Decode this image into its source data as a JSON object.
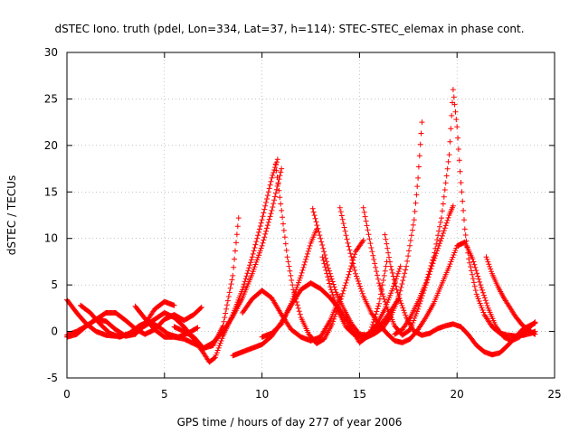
{
  "chart_data": {
    "type": "scatter",
    "title": "dSTEC Iono. truth (pdel, Lon=334, Lat=37, h=114): STEC-STEC_elemax in phase cont.",
    "xlabel": "GPS time / hours of day 277 of year 2006",
    "ylabel": "dSTEC  / TECUs",
    "xlim": [
      0,
      25
    ],
    "ylim": [
      -5,
      30
    ],
    "xticks": [
      0,
      5,
      10,
      15,
      20,
      25
    ],
    "yticks": [
      -5,
      0,
      5,
      10,
      15,
      20,
      25,
      30
    ],
    "grid": true,
    "marker": "+",
    "color": "#ff0000",
    "series": [
      {
        "x": [
          0.0,
          0.5,
          1.0,
          1.5,
          2.0,
          2.5,
          3.0,
          3.5,
          4.0,
          4.5,
          5.0,
          5.5,
          6.0,
          6.5,
          7.0,
          7.3,
          7.6,
          8.0,
          8.5,
          9.0,
          9.5,
          10.0,
          10.5,
          10.8
        ],
        "values": [
          3.4,
          2.0,
          0.8,
          0.0,
          -0.4,
          -0.5,
          -0.4,
          0.0,
          0.6,
          1.3,
          2.0,
          1.5,
          0.5,
          -0.8,
          -2.3,
          -3.3,
          -2.8,
          -0.5,
          1.8,
          4.5,
          8.0,
          12.0,
          16.5,
          18.5
        ]
      },
      {
        "x": [
          0.0,
          0.5,
          1.0,
          1.5,
          2.0,
          2.5,
          3.0,
          3.5,
          4.0,
          4.5,
          5.0,
          5.5,
          6.0,
          6.5,
          6.9
        ],
        "values": [
          -0.4,
          0.0,
          0.6,
          1.3,
          2.0,
          2.0,
          1.2,
          0.3,
          -0.3,
          0.2,
          1.3,
          1.8,
          1.2,
          1.8,
          2.6
        ]
      },
      {
        "x": [
          0.0,
          0.5,
          1.0,
          1.5,
          2.0,
          2.5,
          3.0,
          3.5,
          4.0,
          4.5,
          5.0,
          5.5
        ],
        "values": [
          -0.6,
          -0.3,
          0.6,
          1.3,
          1.1,
          0.2,
          -0.5,
          -0.3,
          0.8,
          2.4,
          3.2,
          2.8
        ]
      },
      {
        "x": [
          0.7,
          1.2,
          1.7,
          2.2,
          2.7,
          3.2,
          3.7,
          4.2,
          4.7,
          5.2,
          5.7,
          6.2,
          6.7
        ],
        "values": [
          2.8,
          2.0,
          0.8,
          -0.2,
          -0.6,
          -0.2,
          0.6,
          1.1,
          0.5,
          -0.3,
          -0.6,
          -0.2,
          0.4
        ]
      },
      {
        "x": [
          3.5,
          4.0,
          4.5,
          5.0,
          5.5,
          6.0,
          6.5,
          7.0,
          7.5,
          8.0,
          8.5,
          8.8
        ],
        "values": [
          2.7,
          1.4,
          0.2,
          -0.6,
          -0.6,
          -0.8,
          -1.3,
          -1.8,
          -1.5,
          0.6,
          6.0,
          12.2
        ]
      },
      {
        "x": [
          5.5,
          6.0,
          6.5,
          7.0,
          7.5,
          8.0,
          8.5,
          9.0,
          9.5,
          10.0,
          10.5,
          11.0
        ],
        "values": [
          0.5,
          0.0,
          -0.6,
          -1.8,
          -1.2,
          0.0,
          1.6,
          3.6,
          6.2,
          9.2,
          13.0,
          17.5
        ]
      },
      {
        "x": [
          8.5,
          9.0,
          9.5,
          10.0,
          10.5,
          11.0,
          11.5,
          12.0,
          12.5,
          13.0,
          13.5,
          14.0,
          14.5,
          15.0,
          15.5,
          16.0,
          16.4
        ],
        "values": [
          -2.6,
          -2.2,
          -1.8,
          -1.4,
          -0.5,
          1.0,
          2.8,
          4.5,
          5.2,
          4.6,
          3.6,
          2.3,
          0.6,
          -1.2,
          -0.4,
          3.0,
          7.5
        ]
      },
      {
        "x": [
          9.0,
          9.5,
          10.0,
          10.5,
          11.0,
          11.5,
          12.0,
          12.5,
          13.0,
          13.5,
          14.0
        ],
        "values": [
          2.0,
          3.5,
          4.4,
          3.6,
          1.8,
          0.2,
          -0.6,
          -1.0,
          -0.6,
          1.2,
          3.8
        ]
      },
      {
        "x": [
          10.7,
          11.0,
          11.3,
          11.6,
          12.0,
          12.4,
          12.8,
          13.2,
          13.6,
          14.0,
          14.4,
          14.8,
          15.2
        ],
        "values": [
          18.0,
          13.0,
          8.0,
          4.5,
          1.5,
          -0.3,
          -1.3,
          -0.8,
          0.8,
          3.2,
          5.8,
          8.6,
          9.8
        ]
      },
      {
        "x": [
          10.0,
          10.5,
          11.0,
          11.5,
          12.0,
          12.5,
          12.8
        ],
        "values": [
          -0.6,
          -0.2,
          0.8,
          3.0,
          6.0,
          9.5,
          11.0
        ]
      },
      {
        "x": [
          12.6,
          13.0,
          13.4,
          13.8,
          14.2,
          14.6,
          15.0,
          15.4,
          15.8,
          16.2,
          16.6,
          17.0
        ],
        "values": [
          13.2,
          10.0,
          6.8,
          4.2,
          2.4,
          0.8,
          -0.3,
          -0.4,
          0.2,
          1.0,
          2.2,
          3.5
        ]
      },
      {
        "x": [
          13.1,
          13.5,
          13.9,
          14.3,
          14.7,
          15.1,
          15.5,
          15.9,
          16.3,
          16.7,
          17.1
        ],
        "values": [
          8.0,
          4.8,
          2.2,
          0.5,
          -0.3,
          -0.6,
          -0.2,
          0.8,
          2.4,
          4.6,
          7.0
        ]
      },
      {
        "x": [
          14.0,
          14.4,
          14.8,
          15.2,
          15.6,
          16.0,
          16.4,
          16.8,
          17.2,
          17.6,
          18.0,
          18.4,
          18.8,
          19.2,
          19.6,
          20.0,
          20.4,
          20.8,
          21.2,
          21.6,
          22.0,
          22.4,
          22.8,
          23.2,
          23.6,
          24.0
        ],
        "values": [
          13.3,
          9.5,
          6.2,
          3.8,
          2.0,
          0.8,
          -0.2,
          -1.0,
          -1.2,
          -0.8,
          0.2,
          1.5,
          3.0,
          5.0,
          7.0,
          9.2,
          9.6,
          7.8,
          5.0,
          2.5,
          0.5,
          -0.6,
          -1.0,
          -0.6,
          0.2,
          1.0
        ]
      },
      {
        "x": [
          15.2,
          15.6,
          16.0,
          16.4,
          16.8,
          17.2,
          17.6,
          18.0,
          18.4,
          18.8,
          19.2,
          19.6,
          19.8
        ],
        "values": [
          13.3,
          9.0,
          5.2,
          2.6,
          0.6,
          -0.4,
          0.2,
          2.4,
          5.0,
          7.6,
          10.0,
          12.5,
          13.5
        ]
      },
      {
        "x": [
          16.3,
          16.6,
          17.0,
          17.4,
          17.8,
          18.2,
          18.6,
          19.0,
          19.4,
          19.8,
          20.2,
          20.6,
          21.0,
          21.4,
          21.8,
          22.2,
          22.6,
          23.0,
          23.4,
          23.8,
          24.0
        ],
        "values": [
          10.4,
          7.0,
          3.8,
          1.5,
          0.0,
          -0.4,
          -0.2,
          0.3,
          0.6,
          0.8,
          0.5,
          -0.4,
          -1.5,
          -2.2,
          -2.5,
          -2.3,
          -1.5,
          -0.6,
          0.3,
          0.7,
          0.9
        ]
      },
      {
        "x": [
          15.0,
          15.4,
          15.8,
          16.2,
          16.6,
          17.0,
          17.4,
          17.8,
          18.0,
          18.2
        ],
        "values": [
          -0.5,
          -0.6,
          -0.2,
          0.4,
          1.6,
          3.6,
          7.0,
          12.0,
          16.5,
          22.5
        ]
      },
      {
        "x": [
          16.8,
          17.2,
          17.6,
          18.0,
          18.4,
          18.8,
          19.2,
          19.6,
          19.8,
          20.0,
          20.2,
          20.4,
          20.6,
          21.0,
          21.4,
          21.8,
          22.2,
          22.6,
          23.0,
          23.4,
          23.8,
          24.0
        ],
        "values": [
          -0.3,
          0.2,
          1.5,
          3.2,
          5.2,
          8.0,
          12.2,
          19.0,
          26.0,
          22.0,
          16.0,
          11.0,
          7.8,
          4.0,
          1.8,
          0.5,
          -0.2,
          -0.4,
          -0.5,
          -0.4,
          -0.2,
          0.0
        ]
      },
      {
        "x": [
          21.5,
          21.8,
          22.1,
          22.4,
          22.7,
          23.0,
          23.3,
          23.6,
          24.0
        ],
        "values": [
          8.0,
          6.2,
          4.8,
          3.6,
          2.6,
          1.6,
          0.8,
          0.2,
          -0.3
        ]
      }
    ]
  }
}
